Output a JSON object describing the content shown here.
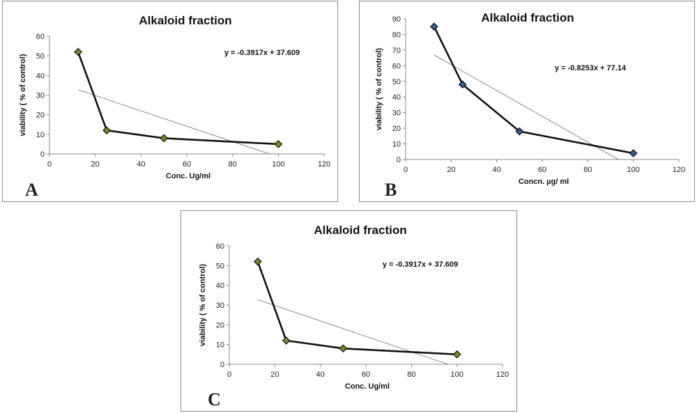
{
  "panels": [
    {
      "id": "panel-a",
      "letter": "A",
      "chart_data": {
        "type": "line",
        "title": "Alkaloid fraction",
        "xlabel": "Conc. Ug/ml",
        "ylabel": "viability ( % of control)",
        "xlim": [
          0,
          120
        ],
        "ylim": [
          0,
          60
        ],
        "xticks": [
          0,
          20,
          40,
          60,
          80,
          100,
          120
        ],
        "yticks": [
          0,
          10,
          20,
          30,
          40,
          50,
          60
        ],
        "grid": false,
        "series": [
          {
            "x": [
              12.5,
              25,
              50,
              100
            ],
            "y": [
              52,
              12,
              8,
              5
            ],
            "marker_color": "#7a8a1e"
          }
        ],
        "trendline": {
          "slope": -0.3917,
          "intercept": 37.609,
          "equation": "y = -0.3917x + 37.609"
        }
      }
    },
    {
      "id": "panel-b",
      "letter": "B",
      "chart_data": {
        "type": "line",
        "title": "Alkaloid fraction",
        "xlabel": "Concn. µg/ ml",
        "ylabel": "viability ( % of control)",
        "xlim": [
          0,
          120
        ],
        "ylim": [
          0,
          90
        ],
        "xticks": [
          0,
          20,
          40,
          60,
          80,
          100,
          120
        ],
        "yticks": [
          0,
          10,
          20,
          30,
          40,
          50,
          60,
          70,
          80,
          90
        ],
        "grid": false,
        "series": [
          {
            "x": [
              12.5,
              25,
              50,
              100
            ],
            "y": [
              85,
              48,
              18,
              4
            ],
            "marker_color": "#2f5d9e"
          }
        ],
        "trendline": {
          "slope": -0.8253,
          "intercept": 77.14,
          "equation": "y = -0.8253x + 77.14"
        }
      }
    },
    {
      "id": "panel-c",
      "letter": "C",
      "chart_data": {
        "type": "line",
        "title": "Alkaloid fraction",
        "xlabel": "Conc. Ug/ml",
        "ylabel": "viability ( % of control)",
        "xlim": [
          0,
          120
        ],
        "ylim": [
          0,
          60
        ],
        "xticks": [
          0,
          20,
          40,
          60,
          80,
          100,
          120
        ],
        "yticks": [
          0,
          10,
          20,
          30,
          40,
          50,
          60
        ],
        "grid": false,
        "series": [
          {
            "x": [
              12.5,
              25,
              50,
              100
            ],
            "y": [
              52,
              12,
              8,
              5
            ],
            "marker_color": "#7a8a1e"
          }
        ],
        "trendline": {
          "slope": -0.3917,
          "intercept": 37.609,
          "equation": "y = -0.3917x + 37.609"
        }
      }
    }
  ]
}
